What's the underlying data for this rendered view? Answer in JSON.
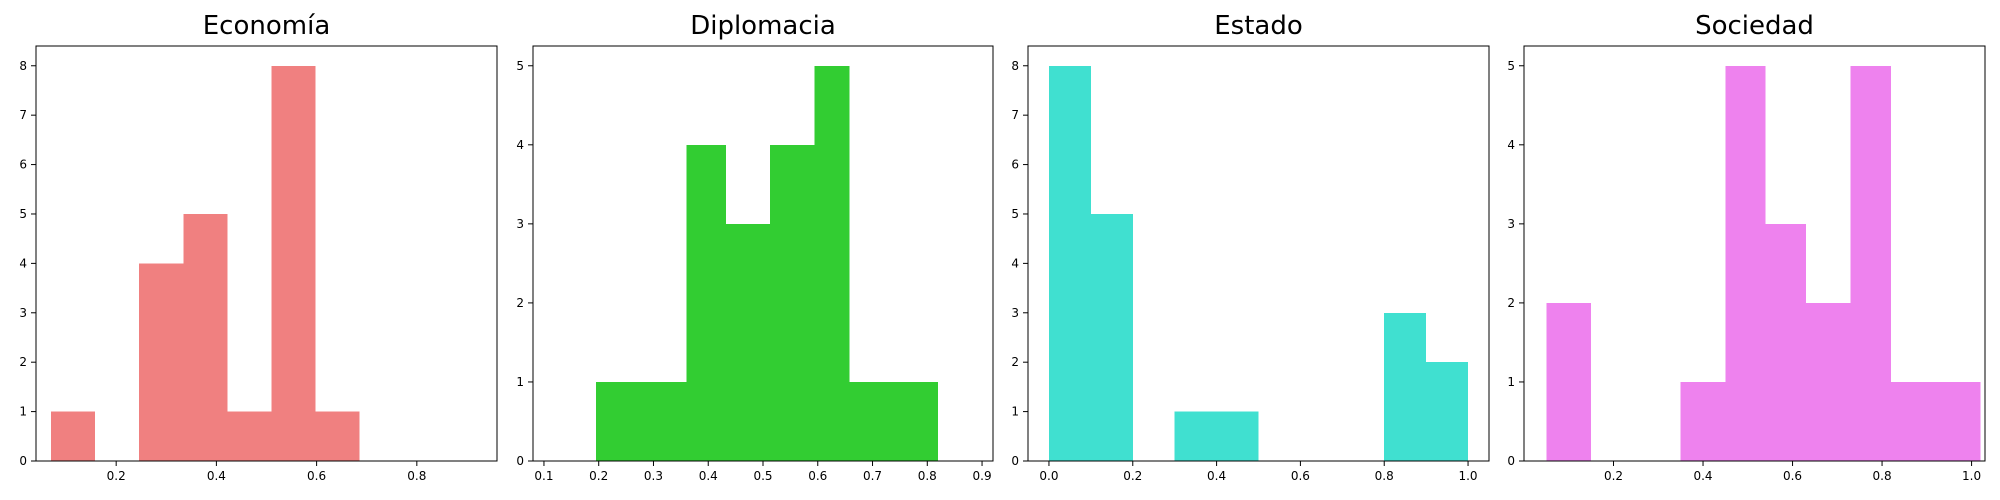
{
  "chart_data": [
    {
      "type": "bar",
      "title": "Economía",
      "color": "#f08080",
      "xlim": [
        0.04,
        0.96
      ],
      "ylim": [
        0,
        8.4
      ],
      "xticks": [
        "0.2",
        "0.4",
        "0.6",
        "0.8"
      ],
      "yticks": [
        "0",
        "1",
        "2",
        "3",
        "4",
        "5",
        "6",
        "7",
        "8"
      ],
      "bins": [
        {
          "x0": 0.07,
          "x1": 0.158,
          "count": 1
        },
        {
          "x0": 0.158,
          "x1": 0.246,
          "count": 0
        },
        {
          "x0": 0.246,
          "x1": 0.334,
          "count": 4
        },
        {
          "x0": 0.334,
          "x1": 0.422,
          "count": 5
        },
        {
          "x0": 0.422,
          "x1": 0.51,
          "count": 1
        },
        {
          "x0": 0.51,
          "x1": 0.598,
          "count": 8
        },
        {
          "x0": 0.598,
          "x1": 0.686,
          "count": 1
        }
      ]
    },
    {
      "type": "bar",
      "title": "Diplomacia",
      "color": "#32cd32",
      "xlim": [
        0.08,
        0.92
      ],
      "ylim": [
        0,
        5.25
      ],
      "xticks": [
        "0.1",
        "0.2",
        "0.3",
        "0.4",
        "0.5",
        "0.6",
        "0.7",
        "0.8",
        "0.9"
      ],
      "yticks": [
        "0",
        "1",
        "2",
        "3",
        "4",
        "5"
      ],
      "bins": [
        {
          "x0": 0.195,
          "x1": 0.278,
          "count": 1
        },
        {
          "x0": 0.278,
          "x1": 0.36,
          "count": 1
        },
        {
          "x0": 0.36,
          "x1": 0.432,
          "count": 4
        },
        {
          "x0": 0.432,
          "x1": 0.513,
          "count": 3
        },
        {
          "x0": 0.513,
          "x1": 0.594,
          "count": 4
        },
        {
          "x0": 0.594,
          "x1": 0.658,
          "count": 5
        },
        {
          "x0": 0.658,
          "x1": 0.74,
          "count": 1
        },
        {
          "x0": 0.74,
          "x1": 0.82,
          "count": 1
        }
      ]
    },
    {
      "type": "bar",
      "title": "Estado",
      "color": "#40e0d0",
      "xlim": [
        -0.05,
        1.05
      ],
      "ylim": [
        0,
        8.4
      ],
      "xticks": [
        "0.0",
        "0.2",
        "0.4",
        "0.6",
        "0.8",
        "1.0"
      ],
      "yticks": [
        "0",
        "1",
        "2",
        "3",
        "4",
        "5",
        "6",
        "7",
        "8"
      ],
      "bins": [
        {
          "x0": 0.0,
          "x1": 0.1,
          "count": 8
        },
        {
          "x0": 0.1,
          "x1": 0.2,
          "count": 5
        },
        {
          "x0": 0.2,
          "x1": 0.3,
          "count": 0
        },
        {
          "x0": 0.3,
          "x1": 0.4,
          "count": 1
        },
        {
          "x0": 0.4,
          "x1": 0.5,
          "count": 1
        },
        {
          "x0": 0.5,
          "x1": 0.6,
          "count": 0
        },
        {
          "x0": 0.6,
          "x1": 0.7,
          "count": 0
        },
        {
          "x0": 0.7,
          "x1": 0.8,
          "count": 0
        },
        {
          "x0": 0.8,
          "x1": 0.9,
          "count": 3
        },
        {
          "x0": 0.9,
          "x1": 1.0,
          "count": 2
        }
      ]
    },
    {
      "type": "bar",
      "title": "Sociedad",
      "color": "#ee82ee",
      "xlim": [
        0.0,
        1.03
      ],
      "ylim": [
        0,
        5.25
      ],
      "xticks": [
        "0.2",
        "0.4",
        "0.6",
        "0.8",
        "1.0"
      ],
      "yticks": [
        "0",
        "1",
        "2",
        "3",
        "4",
        "5"
      ],
      "bins": [
        {
          "x0": 0.05,
          "x1": 0.15,
          "count": 2
        },
        {
          "x0": 0.15,
          "x1": 0.25,
          "count": 0
        },
        {
          "x0": 0.25,
          "x1": 0.35,
          "count": 0
        },
        {
          "x0": 0.35,
          "x1": 0.45,
          "count": 1
        },
        {
          "x0": 0.45,
          "x1": 0.54,
          "count": 5
        },
        {
          "x0": 0.54,
          "x1": 0.63,
          "count": 3
        },
        {
          "x0": 0.63,
          "x1": 0.73,
          "count": 2
        },
        {
          "x0": 0.73,
          "x1": 0.82,
          "count": 5
        },
        {
          "x0": 0.82,
          "x1": 0.92,
          "count": 1
        },
        {
          "x0": 0.92,
          "x1": 1.02,
          "count": 1
        }
      ]
    }
  ]
}
